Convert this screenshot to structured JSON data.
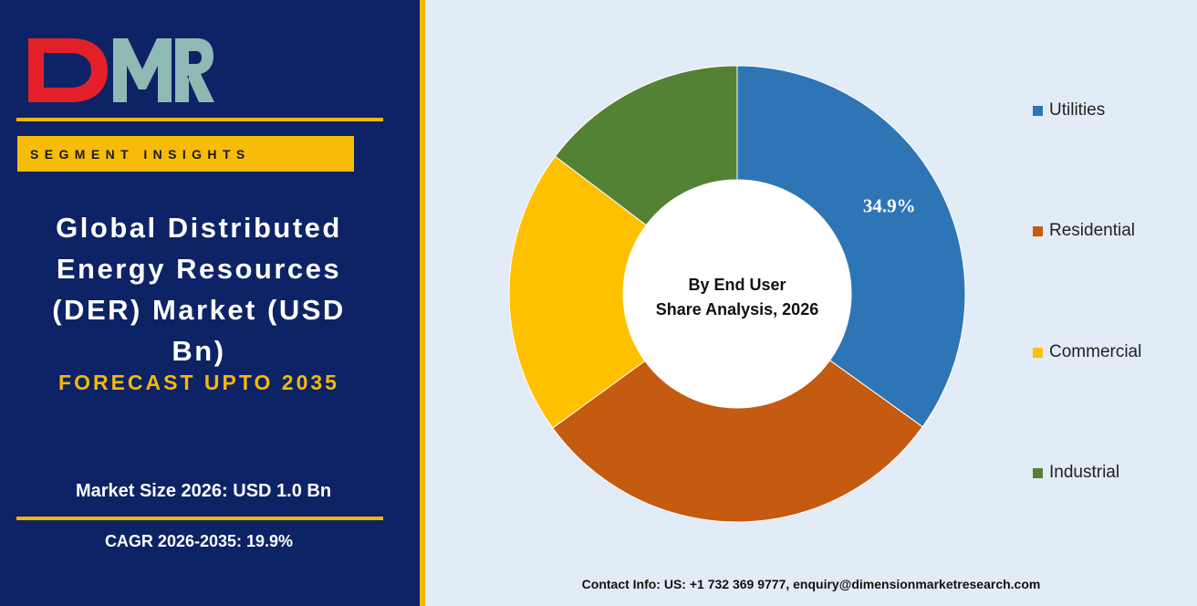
{
  "brand": {
    "logo_text": "DMR",
    "colors": {
      "navy": "#0d2366",
      "gold": "#f2b705",
      "logo_red": "#e3202a",
      "logo_teal": "#8fb9b5"
    }
  },
  "sidebar": {
    "badge": "SEGMENT INSIGHTS",
    "title_lines": [
      "Global Distributed",
      "Energy Resources",
      "(DER) Market (USD",
      "Bn)"
    ],
    "forecast": "FORECAST UPTO 2035",
    "market_size": "Market Size 2026: USD 1.0 Bn",
    "cagr": "CAGR 2026-2035: 19.9%"
  },
  "chart_data": {
    "type": "pie",
    "center_label": [
      "By End User",
      "Share Analysis, 2026"
    ],
    "categories": [
      "Utilities",
      "Residential",
      "Commercial",
      "Industrial"
    ],
    "values": [
      34.9,
      30.1,
      20.3,
      14.7
    ],
    "colors": [
      "#2e75b6",
      "#c55a11",
      "#ffc000",
      "#548235"
    ],
    "data_labels": [
      {
        "category": "Utilities",
        "text": "34.9%"
      }
    ],
    "legend_position": "right",
    "donut": true
  },
  "footer": {
    "contact": "Contact Info: US: +1 732 369 9777, enquiry@dimensionmarketresearch.com"
  }
}
